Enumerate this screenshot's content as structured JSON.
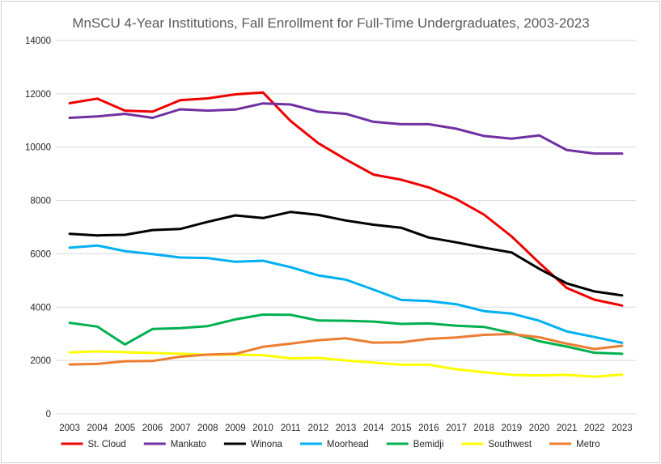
{
  "chart_data": {
    "type": "line",
    "title": "MnSCU 4-Year Institutions, Fall Enrollment for Full-Time Undergraduates, 2003-2023",
    "xlabel": "",
    "ylabel": "",
    "ylim": [
      0,
      14000
    ],
    "yticks": [
      0,
      2000,
      4000,
      6000,
      8000,
      10000,
      12000,
      14000
    ],
    "ytick_labels": [
      "0",
      "2000",
      "4000",
      "6000",
      "8000",
      "10000",
      "12000",
      "14000"
    ],
    "grid": true,
    "legend_position": "bottom",
    "categories": [
      "2003",
      "2004",
      "2005",
      "2006",
      "2007",
      "2008",
      "2009",
      "2010",
      "2011",
      "2012",
      "2013",
      "2014",
      "2015",
      "2016",
      "2017",
      "2018",
      "2019",
      "2020",
      "2021",
      "2022",
      "2023"
    ],
    "series": [
      {
        "name": "St. Cloud",
        "color": "#ee0000",
        "values": [
          11650,
          11820,
          11370,
          11330,
          11760,
          11830,
          11980,
          12050,
          10980,
          10150,
          9540,
          8970,
          8780,
          8490,
          8050,
          7470,
          6650,
          5660,
          4720,
          4280,
          4060
        ]
      },
      {
        "name": "Mankato",
        "color": "#7030a0",
        "values": [
          11100,
          11150,
          11250,
          11100,
          11420,
          11370,
          11410,
          11640,
          11600,
          11330,
          11250,
          10950,
          10860,
          10860,
          10690,
          10420,
          10320,
          10440,
          9890,
          9760,
          9760
        ]
      },
      {
        "name": "Winona",
        "color": "#000000",
        "values": [
          6750,
          6690,
          6710,
          6890,
          6930,
          7200,
          7440,
          7340,
          7570,
          7460,
          7250,
          7090,
          6980,
          6610,
          6430,
          6230,
          6050,
          5440,
          4890,
          4590,
          4440
        ]
      },
      {
        "name": "Moorhead",
        "color": "#00b0f0",
        "values": [
          6230,
          6310,
          6100,
          5990,
          5860,
          5840,
          5700,
          5740,
          5500,
          5190,
          5030,
          4660,
          4270,
          4230,
          4110,
          3850,
          3760,
          3490,
          3090,
          2880,
          2660
        ]
      },
      {
        "name": "Bemidji",
        "color": "#00b050",
        "values": [
          3410,
          3270,
          2600,
          3180,
          3210,
          3290,
          3540,
          3720,
          3710,
          3500,
          3490,
          3460,
          3370,
          3390,
          3300,
          3260,
          3030,
          2720,
          2520,
          2290,
          2250
        ]
      },
      {
        "name": "Southwest",
        "color": "#ffff00",
        "values": [
          2300,
          2340,
          2310,
          2280,
          2250,
          2210,
          2220,
          2200,
          2080,
          2100,
          2000,
          1920,
          1840,
          1840,
          1670,
          1560,
          1460,
          1440,
          1460,
          1390,
          1470
        ]
      },
      {
        "name": "Metro",
        "color": "#ed7d31",
        "values": [
          1850,
          1870,
          1970,
          1980,
          2140,
          2220,
          2250,
          2510,
          2630,
          2760,
          2830,
          2670,
          2680,
          2810,
          2860,
          2960,
          2990,
          2870,
          2630,
          2430,
          2550
        ]
      }
    ]
  }
}
